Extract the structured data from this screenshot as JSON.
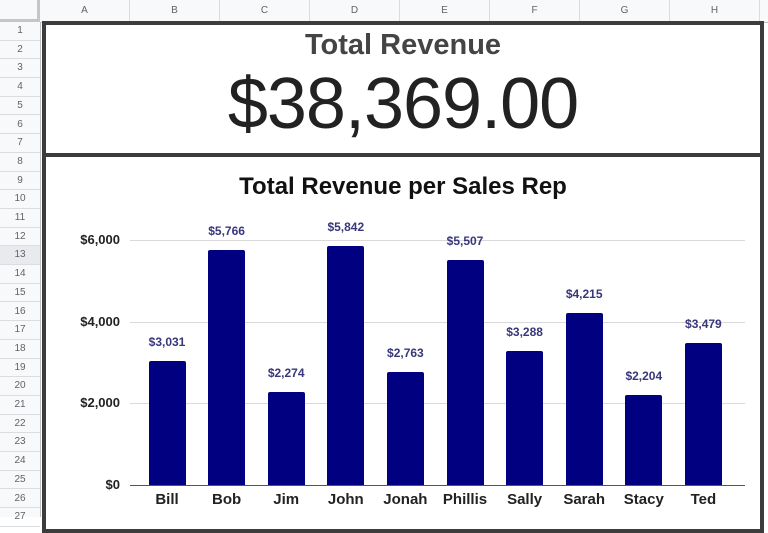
{
  "sheet": {
    "columns": [
      "A",
      "B",
      "C",
      "D",
      "E",
      "F",
      "G",
      "H"
    ],
    "rows": [
      "1",
      "2",
      "3",
      "4",
      "5",
      "6",
      "7",
      "8",
      "9",
      "10",
      "11",
      "12",
      "13",
      "14",
      "15",
      "16",
      "17",
      "18",
      "19",
      "20",
      "21",
      "22",
      "23",
      "24",
      "25",
      "26",
      "27"
    ],
    "selected_row": "13"
  },
  "kpi": {
    "title": "Total Revenue",
    "value": "$38,369.00"
  },
  "chart_data": {
    "type": "bar",
    "title": "Total Revenue per Sales Rep",
    "xlabel": "",
    "ylabel": "",
    "categories": [
      "Bill",
      "Bob",
      "Jim",
      "John",
      "Jonah",
      "Phillis",
      "Sally",
      "Sarah",
      "Stacy",
      "Ted"
    ],
    "values": [
      3031,
      5766,
      2274,
      5842,
      2763,
      5507,
      3288,
      4215,
      2204,
      3479
    ],
    "data_labels": [
      "$3,031",
      "$5,766",
      "$2,274",
      "$5,842",
      "$2,763",
      "$5,507",
      "$3,288",
      "$4,215",
      "$2,204",
      "$3,479"
    ],
    "yticks": [
      "$0",
      "$2,000",
      "$4,000",
      "$6,000"
    ],
    "ytick_values": [
      0,
      2000,
      4000,
      6000
    ],
    "ylim": [
      0,
      6000
    ],
    "grid": true,
    "legend": "none",
    "bar_color": "#000080"
  }
}
